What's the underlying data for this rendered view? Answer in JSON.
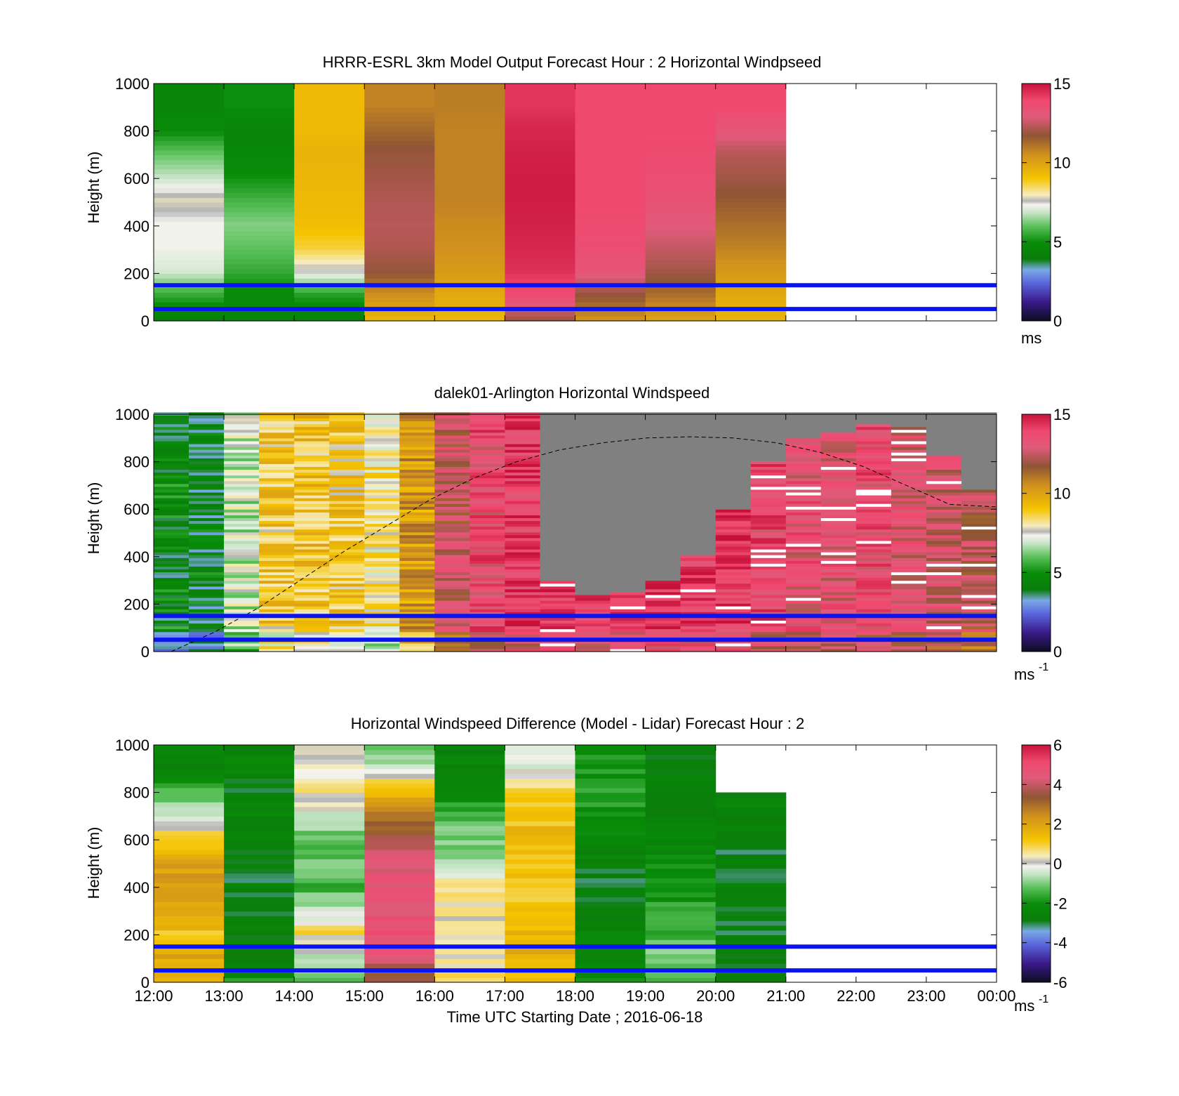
{
  "chart_data": [
    {
      "type": "heatmap",
      "title": "HRRR-ESRL 3km Model Output   Forecast Hour : 2 Horizontal Windpseed",
      "ylabel": "Height (m)",
      "ylim": [
        0,
        1000
      ],
      "yticks": [
        "0",
        "200",
        "400",
        "600",
        "800",
        "1000"
      ],
      "xlim": [
        "12:00",
        "00:00"
      ],
      "colorbar": {
        "min": 0,
        "max": 15,
        "ticks": [
          "0",
          "5",
          "10",
          "15"
        ],
        "unit": "ms"
      },
      "heights": [
        0,
        100,
        200,
        300,
        400,
        500,
        600,
        700,
        800,
        900
      ],
      "columns": [
        {
          "start": "12:00",
          "end": "13:00",
          "values": [
            4.2,
            5.5,
            7.0,
            7.3,
            7.3,
            7.8,
            6.8,
            6.0,
            4.8,
            4.5
          ]
        },
        {
          "start": "13:00",
          "end": "14:00",
          "values": [
            4.5,
            4.8,
            5.5,
            6.0,
            6.3,
            5.7,
            5.0,
            4.6,
            4.5,
            5.0
          ]
        },
        {
          "start": "14:00",
          "end": "15:00",
          "values": [
            4.3,
            5.3,
            7.5,
            8.7,
            9.2,
            9.3,
            9.4,
            9.5,
            9.3,
            9.3
          ]
        },
        {
          "start": "15:00",
          "end": "16:00",
          "values": [
            9.5,
            10.5,
            11.8,
            12.2,
            12.3,
            12.2,
            12.0,
            11.8,
            11.3,
            10.8
          ]
        },
        {
          "start": "16:00",
          "end": "17:00",
          "values": [
            9.4,
            9.8,
            10.2,
            10.5,
            10.6,
            10.8,
            10.8,
            10.8,
            10.8,
            10.9
          ]
        },
        {
          "start": "17:00",
          "end": "18:00",
          "values": [
            12.0,
            13.7,
            14.4,
            14.6,
            14.7,
            14.8,
            14.8,
            14.7,
            14.6,
            14.3
          ]
        },
        {
          "start": "18:00",
          "end": "19:00",
          "values": [
            10.5,
            11.8,
            13.2,
            13.6,
            13.8,
            13.9,
            13.9,
            13.9,
            13.9,
            13.9
          ]
        },
        {
          "start": "19:00",
          "end": "20:00",
          "values": [
            10.0,
            11.2,
            12.0,
            12.5,
            13.0,
            13.4,
            13.6,
            13.8,
            13.9,
            13.9
          ]
        },
        {
          "start": "20:00",
          "end": "21:00",
          "values": [
            9.5,
            9.8,
            10.3,
            10.8,
            11.2,
            11.6,
            12.0,
            12.3,
            13.2,
            13.9
          ]
        }
      ],
      "reference_heights_m": [
        50,
        150
      ]
    },
    {
      "type": "heatmap",
      "title": "dalek01-Arlington  Horizontal Windspeed",
      "ylabel": "Height (m)",
      "ylim": [
        0,
        1000
      ],
      "yticks": [
        "0",
        "200",
        "400",
        "600",
        "800",
        "1000"
      ],
      "xlim": [
        "12:00",
        "00:00"
      ],
      "colorbar": {
        "min": 0,
        "max": 15,
        "ticks": [
          "0",
          "5",
          "10",
          "15"
        ],
        "unit": "ms",
        "unit_exponent": "-1"
      },
      "time_profile_hours": [
        12.0,
        12.5,
        13.0,
        13.5,
        14.0,
        14.5,
        15.0,
        15.5,
        16.0,
        16.5,
        17.0,
        17.5,
        18.0,
        18.5,
        19.0,
        19.5,
        20.0,
        20.5,
        21.0,
        21.5,
        22.0,
        22.5,
        23.0,
        23.5
      ],
      "wind_speed_level_ms": [
        4.5,
        4.2,
        7.0,
        8.8,
        9.0,
        8.8,
        8.0,
        10.2,
        12.5,
        13.6,
        14.0,
        14.3,
        14.3,
        14.4,
        14.4,
        14.3,
        14.2,
        13.8,
        13.3,
        13.2,
        13.6,
        13.0,
        12.8,
        12.5
      ],
      "no_data_region_top_m": [
        null,
        null,
        null,
        null,
        null,
        null,
        null,
        null,
        null,
        null,
        null,
        300,
        230,
        250,
        300,
        400,
        600,
        800,
        900,
        920,
        960,
        940,
        820,
        680
      ],
      "boundary_layer_height_m": [
        0,
        80,
        180,
        300,
        420,
        530,
        640,
        730,
        800,
        850,
        880,
        900,
        905,
        900,
        880,
        840,
        780,
        700,
        620,
        610
      ],
      "boundary_layer_times": [
        "12:15",
        "12:51",
        "13:28",
        "14:05",
        "14:42",
        "15:19",
        "15:56",
        "16:33",
        "17:10",
        "17:47",
        "18:24",
        "19:01",
        "19:38",
        "20:15",
        "20:52",
        "21:29",
        "22:06",
        "22:43",
        "23:20",
        "23:59"
      ],
      "reference_heights_m": [
        50,
        150
      ]
    },
    {
      "type": "heatmap",
      "title": "Horizontal Windspeed Difference (Model - Lidar) Forecast Hour : 2",
      "ylabel": "Height (m)",
      "xlabel": "Time UTC  Starting Date ; 2016-06-18",
      "ylim": [
        0,
        1000
      ],
      "yticks": [
        "0",
        "200",
        "400",
        "600",
        "800",
        "1000"
      ],
      "xticks": [
        "12:00",
        "13:00",
        "14:00",
        "15:00",
        "16:00",
        "17:00",
        "18:00",
        "19:00",
        "20:00",
        "21:00",
        "22:00",
        "23:00",
        "00:00"
      ],
      "colorbar": {
        "min": -6,
        "max": 6,
        "ticks": [
          "-6",
          "-4",
          "-2",
          "0",
          "2",
          "4",
          "6"
        ],
        "unit": "ms",
        "unit_exponent": "-1"
      },
      "heights": [
        0,
        100,
        200,
        300,
        400,
        500,
        600,
        700,
        800,
        900
      ],
      "columns": [
        {
          "start": "12:00",
          "end": "13:00",
          "values": [
            2.0,
            1.8,
            1.2,
            2.0,
            2.3,
            2.0,
            1.0,
            -0.5,
            -1.5,
            -2.5
          ]
        },
        {
          "start": "13:00",
          "end": "14:00",
          "values": [
            -2.0,
            -2.5,
            -2.6,
            -2.8,
            -2.8,
            -2.8,
            -2.5,
            -2.5,
            -2.8,
            -2.5
          ]
        },
        {
          "start": "14:00",
          "end": "15:00",
          "values": [
            -1.0,
            -0.5,
            0.8,
            -0.7,
            -1.5,
            -1.2,
            -1.4,
            -0.3,
            0.5,
            0.0
          ]
        },
        {
          "start": "15:00",
          "end": "16:00",
          "values": [
            3.5,
            4.3,
            4.8,
            4.6,
            4.5,
            4.5,
            3.5,
            2.5,
            1.5,
            -0.8
          ]
        },
        {
          "start": "16:00",
          "end": "17:00",
          "values": [
            0.8,
            0.4,
            0.3,
            0.5,
            0.5,
            -0.7,
            -1.0,
            -1.5,
            -2.0,
            -2.5
          ]
        },
        {
          "start": "17:00",
          "end": "18:00",
          "values": [
            1.5,
            1.7,
            1.5,
            1.2,
            1.0,
            1.2,
            1.5,
            1.2,
            1.0,
            -0.5
          ]
        },
        {
          "start": "18:00",
          "end": "19:00",
          "values": [
            -2.0,
            -2.3,
            -2.5,
            -2.7,
            -2.8,
            -2.6,
            -2.4,
            -2.0,
            -1.8,
            -2.0
          ]
        },
        {
          "start": "19:00",
          "end": "20:00",
          "values": [
            -1.2,
            -1.0,
            -1.5,
            -1.8,
            -1.9,
            -2.3,
            -2.6,
            -2.8,
            -2.7,
            -2.6
          ]
        },
        {
          "start": "20:00",
          "end": "21:00",
          "values": [
            -2.5,
            -2.8,
            -2.8,
            -2.8,
            -2.8,
            -2.8,
            -2.8,
            -2.6,
            null,
            null
          ]
        }
      ],
      "reference_heights_m": [
        50,
        150
      ]
    }
  ]
}
